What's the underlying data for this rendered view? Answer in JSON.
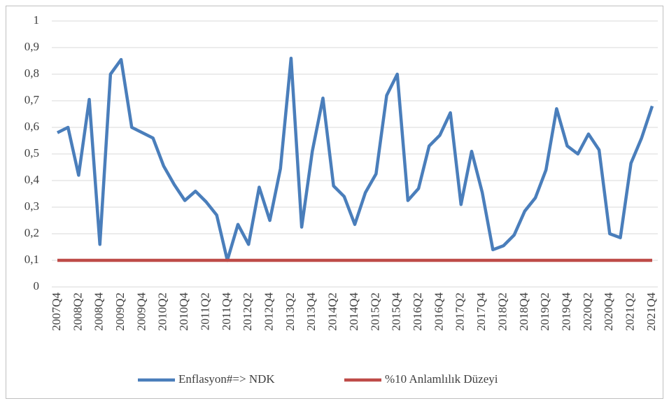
{
  "chart_data": {
    "type": "line",
    "categories": [
      "2007Q4",
      null,
      "2008Q2",
      null,
      "2008Q4",
      null,
      "2009Q2",
      null,
      "2009Q4",
      null,
      "2010Q2",
      null,
      "2010Q4",
      null,
      "2011Q2",
      null,
      "2011Q4",
      null,
      "2012Q2",
      null,
      "2012Q4",
      null,
      "2013Q2",
      null,
      "2013Q4",
      null,
      "2014Q2",
      null,
      "2014Q4",
      null,
      "2015Q2",
      null,
      "2015Q4",
      null,
      "2016Q2",
      null,
      "2016Q4",
      null,
      "2017Q2",
      null,
      "2017Q4",
      null,
      "2018Q2",
      null,
      "2018Q4",
      null,
      "2019Q2",
      null,
      "2019Q4",
      null,
      "2020Q2",
      null,
      "2020Q4",
      null,
      "2021Q2",
      null,
      "2021Q4"
    ],
    "series": [
      {
        "name": "Enflasyon#=> NDK",
        "color": "#4a7ebb",
        "values": [
          0.58,
          0.6,
          0.42,
          0.705,
          0.16,
          0.8,
          0.855,
          0.6,
          0.58,
          0.56,
          0.455,
          0.385,
          0.325,
          0.36,
          0.32,
          0.27,
          0.1,
          0.235,
          0.16,
          0.375,
          0.25,
          0.445,
          0.86,
          0.225,
          0.51,
          0.71,
          0.38,
          0.34,
          0.235,
          0.355,
          0.425,
          0.72,
          0.8,
          0.325,
          0.37,
          0.53,
          0.57,
          0.655,
          0.31,
          0.51,
          0.355,
          0.14,
          0.155,
          0.195,
          0.285,
          0.335,
          0.44,
          0.67,
          0.53,
          0.5,
          0.575,
          0.515,
          0.2,
          0.185,
          0.465,
          0.56,
          0.68
        ]
      },
      {
        "name": "%10 Anlamlılık Düzeyi",
        "color": "#be4b48",
        "values": [
          0.1,
          0.1,
          0.1,
          0.1,
          0.1,
          0.1,
          0.1,
          0.1,
          0.1,
          0.1,
          0.1,
          0.1,
          0.1,
          0.1,
          0.1,
          0.1,
          0.1,
          0.1,
          0.1,
          0.1,
          0.1,
          0.1,
          0.1,
          0.1,
          0.1,
          0.1,
          0.1,
          0.1,
          0.1,
          0.1,
          0.1,
          0.1,
          0.1,
          0.1,
          0.1,
          0.1,
          0.1,
          0.1,
          0.1,
          0.1,
          0.1,
          0.1,
          0.1,
          0.1,
          0.1,
          0.1,
          0.1,
          0.1,
          0.1,
          0.1,
          0.1,
          0.1,
          0.1,
          0.1,
          0.1,
          0.1,
          0.1
        ]
      }
    ],
    "ylim": [
      0,
      1
    ],
    "yticks": [
      0,
      {
        "value": 0.1,
        "label": "0,1"
      },
      {
        "value": 0.2,
        "label": "0,2"
      },
      {
        "value": 0.3,
        "label": "0,3"
      },
      {
        "value": 0.4,
        "label": "0,4"
      },
      {
        "value": 0.5,
        "label": "0,5"
      },
      {
        "value": 0.6,
        "label": "0,6"
      },
      {
        "value": 0.7,
        "label": "0,7"
      },
      {
        "value": 0.8,
        "label": "0,8"
      },
      {
        "value": 0.9,
        "label": "0,9"
      },
      1
    ],
    "grid": true,
    "legend": "bottom"
  }
}
